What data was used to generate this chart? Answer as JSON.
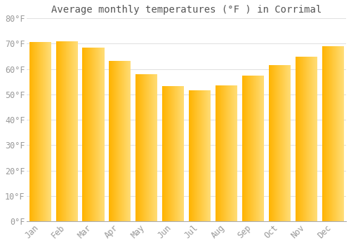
{
  "title": "Average monthly temperatures (°F ) in Corrimal",
  "months": [
    "Jan",
    "Feb",
    "Mar",
    "Apr",
    "May",
    "Jun",
    "Jul",
    "Aug",
    "Sep",
    "Oct",
    "Nov",
    "Dec"
  ],
  "values": [
    70.7,
    70.9,
    68.5,
    63.3,
    57.9,
    53.4,
    51.6,
    53.5,
    57.5,
    61.5,
    65.0,
    69.0
  ],
  "ylim": [
    0,
    80
  ],
  "yticks": [
    0,
    10,
    20,
    30,
    40,
    50,
    60,
    70,
    80
  ],
  "bar_color_left": "#FFB700",
  "bar_color_right": "#FFD966",
  "background_color": "#ffffff",
  "grid_color": "#e0e0e0",
  "title_fontsize": 10,
  "tick_fontsize": 8.5,
  "tick_label_color": "#999999",
  "title_color": "#555555"
}
